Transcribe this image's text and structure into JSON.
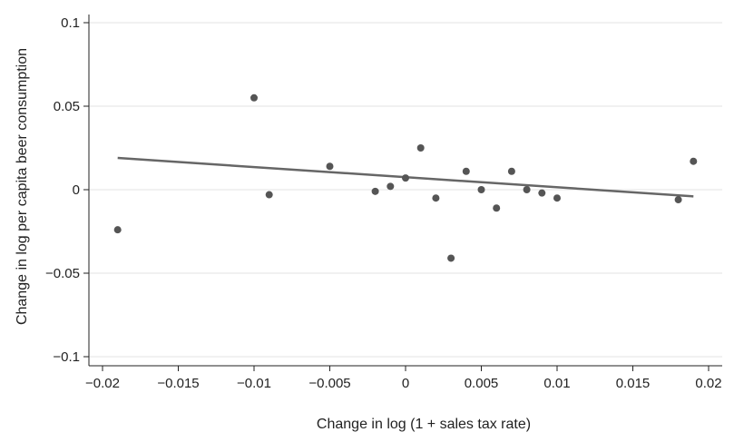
{
  "chart_data": {
    "type": "scatter",
    "title": "",
    "xlabel": "Change in log (1 + sales tax rate)",
    "ylabel": "Change in log per capita beer consumption",
    "xlim": [
      -0.02,
      0.02
    ],
    "ylim": [
      -0.1,
      0.1
    ],
    "x_ticks": [
      -0.02,
      -0.015,
      -0.01,
      -0.005,
      0,
      0.005,
      0.01,
      0.015,
      0.02
    ],
    "x_tick_labels": [
      "−0.02",
      "−0.015",
      "−0.01",
      "−0.005",
      "0",
      "0.005",
      "0.01",
      "0.015",
      "0.02"
    ],
    "y_ticks": [
      0.1,
      0.05,
      0,
      -0.05,
      -0.1
    ],
    "y_tick_labels": [
      "0.1",
      "0.05",
      "0",
      "−0.05",
      "−0.1"
    ],
    "grid": "horizontal",
    "legend": "none",
    "series": [
      {
        "x": [
          -0.019,
          -0.01,
          -0.009,
          -0.005,
          -0.002,
          -0.001,
          0.0,
          0.001,
          0.002,
          0.003,
          0.004,
          0.005,
          0.006,
          0.007,
          0.008,
          0.009,
          0.01,
          0.018,
          0.019
        ],
        "y": [
          -0.024,
          0.055,
          -0.003,
          0.014,
          -0.001,
          0.002,
          0.007,
          0.025,
          -0.005,
          -0.041,
          0.011,
          0.0,
          -0.011,
          0.011,
          0.0,
          -0.002,
          -0.005,
          -0.006,
          0.017
        ]
      }
    ],
    "fit_line": {
      "x": [
        -0.019,
        0.019
      ],
      "y": [
        0.019,
        -0.004
      ]
    },
    "colors": {
      "points": "#555555",
      "fit_line": "#666666",
      "gridlines": "#e3e3e3",
      "axis": "#222222"
    }
  }
}
